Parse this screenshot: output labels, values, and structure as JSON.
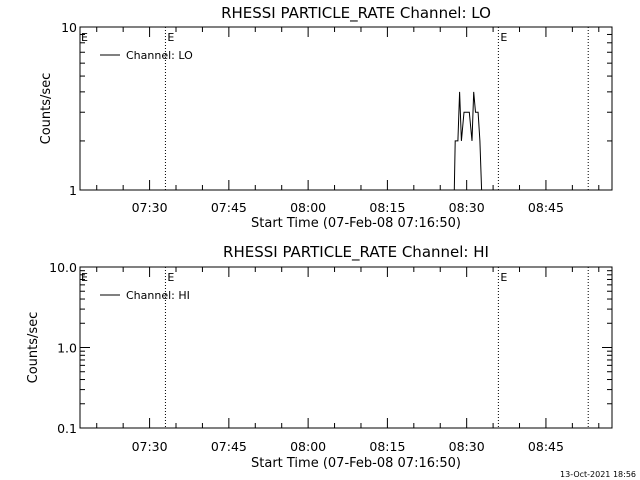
{
  "chart_data": [
    {
      "type": "line",
      "title": "RHESSI PARTICLE_RATE Channel: LO",
      "xlabel": "Start Time (07-Feb-08 07:16:50)",
      "ylabel": "Counts/sec",
      "y_scale": "log",
      "ylim": [
        1,
        10
      ],
      "y_ticks": [
        {
          "value": 1,
          "label": "1"
        },
        {
          "value": 10,
          "label": "10"
        }
      ],
      "xlim": [
        "07:16:50",
        "08:57:30"
      ],
      "x_ticks": [
        "07:30",
        "07:45",
        "08:00",
        "08:15",
        "08:30",
        "08:45"
      ],
      "legend": {
        "placement": "top-left",
        "entries": [
          "Channel: LO"
        ]
      },
      "markers": [
        {
          "time": "07:33:00",
          "label": "E",
          "style": "dotted"
        },
        {
          "time": "08:36:00",
          "label": "E",
          "style": "dotted"
        },
        {
          "time": "08:53:00",
          "label": "",
          "style": "dotted"
        }
      ],
      "edge_marker_label": "E",
      "series": [
        {
          "name": "Channel: LO",
          "points": [
            {
              "t": "08:27:40",
              "y": 1
            },
            {
              "t": "08:27:50",
              "y": 2
            },
            {
              "t": "08:28:20",
              "y": 2
            },
            {
              "t": "08:28:40",
              "y": 4
            },
            {
              "t": "08:29:00",
              "y": 2
            },
            {
              "t": "08:29:30",
              "y": 3
            },
            {
              "t": "08:30:30",
              "y": 3
            },
            {
              "t": "08:31:00",
              "y": 2
            },
            {
              "t": "08:31:20",
              "y": 4
            },
            {
              "t": "08:31:40",
              "y": 3
            },
            {
              "t": "08:32:10",
              "y": 3
            },
            {
              "t": "08:32:30",
              "y": 2
            },
            {
              "t": "08:32:50",
              "y": 1
            }
          ]
        }
      ]
    },
    {
      "type": "line",
      "title": "RHESSI PARTICLE_RATE Channel: HI",
      "xlabel": "Start Time (07-Feb-08 07:16:50)",
      "ylabel": "Counts/sec",
      "y_scale": "log",
      "ylim": [
        0.1,
        10
      ],
      "y_ticks": [
        {
          "value": 0.1,
          "label": "0.1"
        },
        {
          "value": 1,
          "label": "1.0"
        },
        {
          "value": 10,
          "label": "10.0"
        }
      ],
      "xlim": [
        "07:16:50",
        "08:57:30"
      ],
      "x_ticks": [
        "07:30",
        "07:45",
        "08:00",
        "08:15",
        "08:30",
        "08:45"
      ],
      "legend": {
        "placement": "top-left",
        "entries": [
          "Channel: HI"
        ]
      },
      "markers": [
        {
          "time": "07:33:00",
          "label": "E",
          "style": "dotted"
        },
        {
          "time": "08:36:00",
          "label": "E",
          "style": "dotted"
        },
        {
          "time": "08:53:00",
          "label": "",
          "style": "dotted"
        }
      ],
      "edge_marker_label": "E",
      "series": [
        {
          "name": "Channel: HI",
          "points": []
        }
      ]
    }
  ],
  "footer": {
    "timestamp": "13-Oct-2021 18:56"
  }
}
